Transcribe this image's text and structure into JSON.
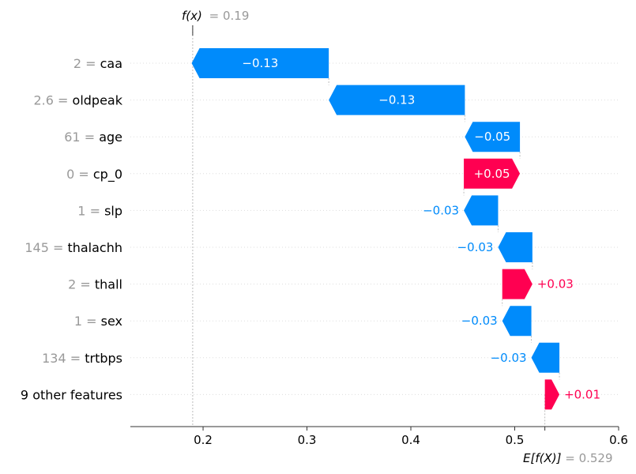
{
  "chart_data": {
    "type": "waterfall",
    "fx_symbol": "f(x)",
    "fx_value": "0.19",
    "efx_symbol": "E[f(X)]",
    "efx_value": "0.529",
    "base_value": 0.529,
    "output_value": 0.19,
    "xlim": [
      0.13,
      0.6
    ],
    "xticks": [
      0.2,
      0.3,
      0.4,
      0.5,
      0.6
    ],
    "xtick_labels": [
      "0.2",
      "0.3",
      "0.4",
      "0.5",
      "0.6"
    ],
    "features": [
      {
        "value": "2",
        "name": "caa",
        "contribution": -0.132,
        "label": "−0.13"
      },
      {
        "value": "2.6",
        "name": "oldpeak",
        "contribution": -0.131,
        "label": "−0.13"
      },
      {
        "value": "61",
        "name": "age",
        "contribution": -0.053,
        "label": "−0.05"
      },
      {
        "value": "0",
        "name": "cp_0",
        "contribution": 0.054,
        "label": "+0.05"
      },
      {
        "value": "1",
        "name": "slp",
        "contribution": -0.033,
        "label": "−0.03"
      },
      {
        "value": "145",
        "name": "thalachh",
        "contribution": -0.033,
        "label": "−0.03"
      },
      {
        "value": "2",
        "name": "thall",
        "contribution": 0.029,
        "label": "+0.03"
      },
      {
        "value": "1",
        "name": "sex",
        "contribution": -0.028,
        "label": "−0.03"
      },
      {
        "value": "134",
        "name": "trtbps",
        "contribution": -0.027,
        "label": "−0.03"
      },
      {
        "value": "",
        "name": "9 other features",
        "contribution": 0.014,
        "label": "+0.01"
      }
    ],
    "colors": {
      "positive": "#ff0051",
      "negative": "#008bfb",
      "axis": "#333333",
      "grid": "#dddddd",
      "muted": "#999999"
    },
    "grid": true
  }
}
